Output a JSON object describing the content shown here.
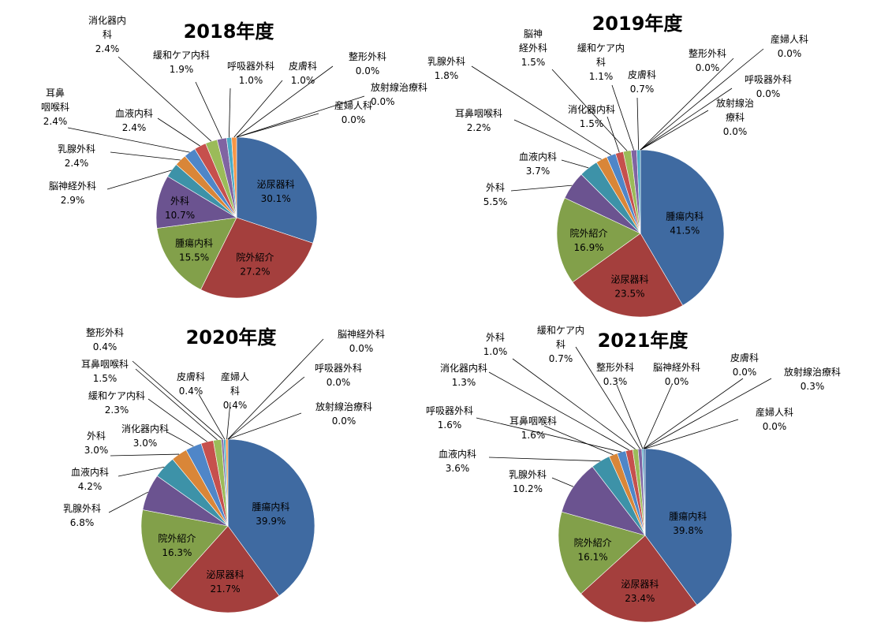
{
  "colors": {
    "blue": "#3f6aa1",
    "red": "#a43f3d",
    "green": "#82a04a",
    "purple": "#6b5390",
    "teal": "#3d92a8",
    "orange": "#d98638",
    "mblue": "#4f86c8",
    "mred": "#c6504d",
    "lgreen": "#9bbb59",
    "lpurple": "#8064a2",
    "lteal": "#4bacc6",
    "lorange": "#f79646",
    "skyblue": "#6fa8dc"
  },
  "chart_data": [
    {
      "type": "pie",
      "title": "2018年度",
      "slices": [
        {
          "label": "泌尿器科",
          "value": 30.1,
          "pct": "30.1%",
          "color": "blue"
        },
        {
          "label": "院外紹介",
          "value": 27.2,
          "pct": "27.2%",
          "color": "red"
        },
        {
          "label": "腫瘍内科",
          "value": 15.5,
          "pct": "15.5%",
          "color": "green"
        },
        {
          "label": "外科",
          "value": 10.7,
          "pct": "10.7%",
          "color": "purple"
        },
        {
          "label": "脳神経外科",
          "value": 2.9,
          "pct": "2.9%",
          "color": "teal"
        },
        {
          "label": "乳腺外科",
          "value": 2.4,
          "pct": "2.4%",
          "color": "orange"
        },
        {
          "label": "耳鼻咽喉科",
          "value": 2.4,
          "pct": "2.4%",
          "color": "mblue"
        },
        {
          "label": "血液内科",
          "value": 2.4,
          "pct": "2.4%",
          "color": "mred"
        },
        {
          "label": "消化器内科",
          "value": 2.4,
          "pct": "2.4%",
          "color": "lgreen"
        },
        {
          "label": "緩和ケア内科",
          "value": 1.9,
          "pct": "1.9%",
          "color": "lpurple"
        },
        {
          "label": "呼吸器外科",
          "value": 1.0,
          "pct": "1.0%",
          "color": "lteal"
        },
        {
          "label": "皮膚科",
          "value": 1.0,
          "pct": "1.0%",
          "color": "lorange"
        },
        {
          "label": "整形外科",
          "value": 0.0,
          "pct": "0.0%",
          "color": "skyblue"
        },
        {
          "label": "放射線治療科",
          "value": 0.0,
          "pct": "0.0%",
          "color": "blue"
        },
        {
          "label": "産婦人科",
          "value": 0.0,
          "pct": "0.0%",
          "color": "red"
        }
      ]
    },
    {
      "type": "pie",
      "title": "2019年度",
      "slices": [
        {
          "label": "腫瘍内科",
          "value": 41.5,
          "pct": "41.5%",
          "color": "blue"
        },
        {
          "label": "泌尿器科",
          "value": 23.5,
          "pct": "23.5%",
          "color": "red"
        },
        {
          "label": "院外紹介",
          "value": 16.9,
          "pct": "16.9%",
          "color": "green"
        },
        {
          "label": "外科",
          "value": 5.5,
          "pct": "5.5%",
          "color": "purple"
        },
        {
          "label": "血液内科",
          "value": 3.7,
          "pct": "3.7%",
          "color": "teal"
        },
        {
          "label": "耳鼻咽喉科",
          "value": 2.2,
          "pct": "2.2%",
          "color": "orange"
        },
        {
          "label": "乳腺外科",
          "value": 1.8,
          "pct": "1.8%",
          "color": "mblue"
        },
        {
          "label": "消化器内科",
          "value": 1.5,
          "pct": "1.5%",
          "color": "mred"
        },
        {
          "label": "脳神経外科",
          "value": 1.5,
          "pct": "1.5%",
          "color": "lgreen"
        },
        {
          "label": "緩和ケア内科",
          "value": 1.1,
          "pct": "1.1%",
          "color": "lpurple"
        },
        {
          "label": "皮膚科",
          "value": 0.7,
          "pct": "0.7%",
          "color": "lteal"
        },
        {
          "label": "整形外科",
          "value": 0.0,
          "pct": "0.0%",
          "color": "lorange"
        },
        {
          "label": "産婦人科",
          "value": 0.0,
          "pct": "0.0%",
          "color": "skyblue"
        },
        {
          "label": "呼吸器外科",
          "value": 0.0,
          "pct": "0.0%",
          "color": "blue"
        },
        {
          "label": "放射線治療科",
          "value": 0.0,
          "pct": "0.0%",
          "color": "red"
        }
      ]
    },
    {
      "type": "pie",
      "title": "2020年度",
      "slices": [
        {
          "label": "腫瘍内科",
          "value": 39.9,
          "pct": "39.9%",
          "color": "blue"
        },
        {
          "label": "泌尿器科",
          "value": 21.7,
          "pct": "21.7%",
          "color": "red"
        },
        {
          "label": "院外紹介",
          "value": 16.3,
          "pct": "16.3%",
          "color": "green"
        },
        {
          "label": "乳腺外科",
          "value": 6.8,
          "pct": "6.8%",
          "color": "purple"
        },
        {
          "label": "血液内科",
          "value": 4.2,
          "pct": "4.2%",
          "color": "teal"
        },
        {
          "label": "外科",
          "value": 3.0,
          "pct": "3.0%",
          "color": "orange"
        },
        {
          "label": "消化器内科",
          "value": 3.0,
          "pct": "3.0%",
          "color": "mblue"
        },
        {
          "label": "緩和ケア内科",
          "value": 2.3,
          "pct": "2.3%",
          "color": "mred"
        },
        {
          "label": "耳鼻咽喉科",
          "value": 1.5,
          "pct": "1.5%",
          "color": "lgreen"
        },
        {
          "label": "整形外科",
          "value": 0.4,
          "pct": "0.4%",
          "color": "lpurple"
        },
        {
          "label": "皮膚科",
          "value": 0.4,
          "pct": "0.4%",
          "color": "lteal"
        },
        {
          "label": "産婦人科",
          "value": 0.4,
          "pct": "0.4%",
          "color": "lorange"
        },
        {
          "label": "脳神経外科",
          "value": 0.0,
          "pct": "0.0%",
          "color": "skyblue"
        },
        {
          "label": "呼吸器外科",
          "value": 0.0,
          "pct": "0.0%",
          "color": "blue"
        },
        {
          "label": "放射線治療科",
          "value": 0.0,
          "pct": "0.0%",
          "color": "red"
        }
      ]
    },
    {
      "type": "pie",
      "title": "2021年度",
      "slices": [
        {
          "label": "腫瘍内科",
          "value": 39.8,
          "pct": "39.8%",
          "color": "blue"
        },
        {
          "label": "泌尿器科",
          "value": 23.4,
          "pct": "23.4%",
          "color": "red"
        },
        {
          "label": "院外紹介",
          "value": 16.1,
          "pct": "16.1%",
          "color": "green"
        },
        {
          "label": "乳腺外科",
          "value": 10.2,
          "pct": "10.2%",
          "color": "purple"
        },
        {
          "label": "血液内科",
          "value": 3.6,
          "pct": "3.6%",
          "color": "teal"
        },
        {
          "label": "耳鼻咽喉科",
          "value": 1.6,
          "pct": "1.6%",
          "color": "orange"
        },
        {
          "label": "呼吸器外科",
          "value": 1.6,
          "pct": "1.6%",
          "color": "mblue"
        },
        {
          "label": "消化器内科",
          "value": 1.3,
          "pct": "1.3%",
          "color": "mred"
        },
        {
          "label": "外科",
          "value": 1.0,
          "pct": "1.0%",
          "color": "lgreen"
        },
        {
          "label": "緩和ケア内科",
          "value": 0.7,
          "pct": "0.7%",
          "color": "lpurple"
        },
        {
          "label": "整形外科",
          "value": 0.3,
          "pct": "0.3%",
          "color": "lteal"
        },
        {
          "label": "脳神経外科",
          "value": 0.0,
          "pct": "0.0%",
          "color": "lorange"
        },
        {
          "label": "皮膚科",
          "value": 0.0,
          "pct": "0.0%",
          "color": "skyblue"
        },
        {
          "label": "放射線治療科",
          "value": 0.3,
          "pct": "0.3%",
          "color": "blue"
        },
        {
          "label": "産婦人科",
          "value": 0.0,
          "pct": "0.0%",
          "color": "red"
        }
      ]
    }
  ]
}
